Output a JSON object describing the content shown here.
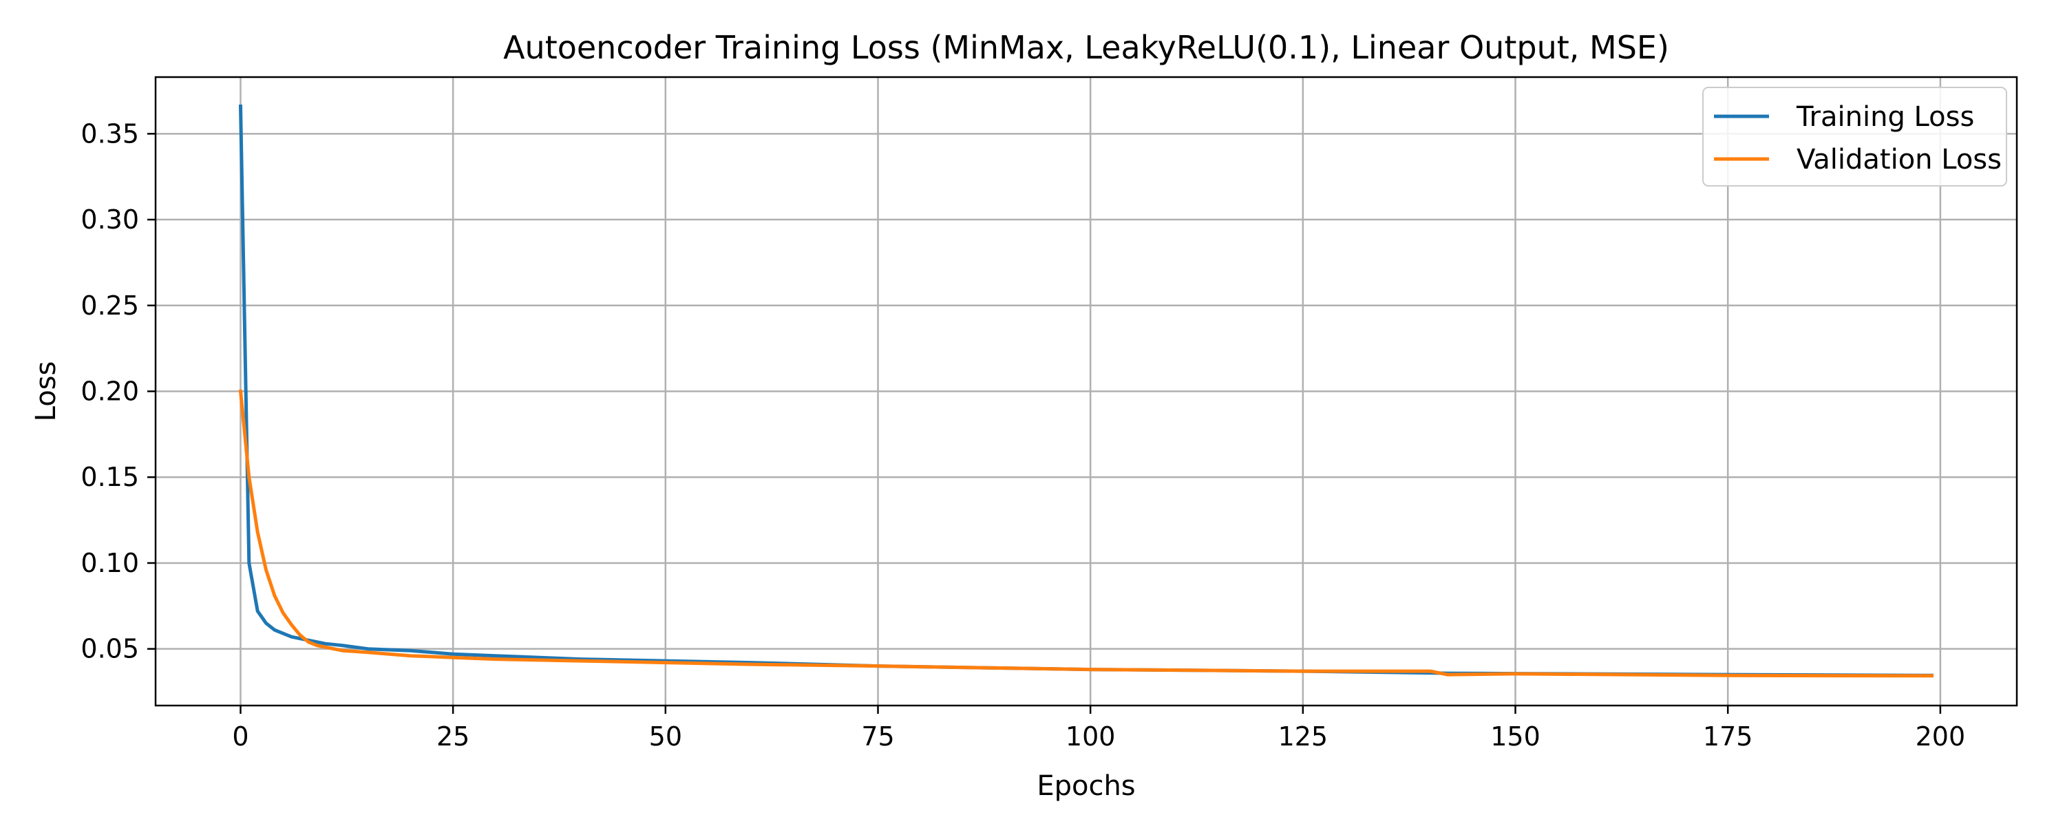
{
  "chart_data": {
    "type": "line",
    "title": "Autoencoder Training Loss (MinMax, LeakyReLU(0.1), Linear Output, MSE)",
    "xlabel": "Epochs",
    "ylabel": "Loss",
    "xlim": [
      -10,
      209
    ],
    "ylim": [
      0.017,
      0.383
    ],
    "xticks": [
      0,
      25,
      50,
      75,
      100,
      125,
      150,
      175,
      200
    ],
    "yticks": [
      0.05,
      0.1,
      0.15,
      0.2,
      0.25,
      0.3,
      0.35
    ],
    "xtick_labels": [
      "0",
      "25",
      "50",
      "75",
      "100",
      "125",
      "150",
      "175",
      "200"
    ],
    "ytick_labels": [
      "0.05",
      "0.10",
      "0.15",
      "0.20",
      "0.25",
      "0.30",
      "0.35"
    ],
    "grid": true,
    "legend": "top-right",
    "x": [
      0,
      1,
      2,
      3,
      4,
      5,
      6,
      7,
      8,
      9,
      10,
      12,
      15,
      20,
      25,
      30,
      40,
      50,
      60,
      75,
      100,
      125,
      140,
      142,
      150,
      175,
      199
    ],
    "series": [
      {
        "name": "Training Loss",
        "color": "#1f77b4",
        "values": [
          0.366,
          0.1,
          0.072,
          0.065,
          0.061,
          0.059,
          0.057,
          0.056,
          0.055,
          0.054,
          0.053,
          0.052,
          0.05,
          0.049,
          0.047,
          0.046,
          0.044,
          0.043,
          0.042,
          0.04,
          0.038,
          0.037,
          0.036,
          0.0358,
          0.0356,
          0.035,
          0.0345
        ]
      },
      {
        "name": "Validation Loss",
        "color": "#ff7f0e",
        "values": [
          0.2,
          0.15,
          0.118,
          0.096,
          0.081,
          0.071,
          0.064,
          0.058,
          0.054,
          0.052,
          0.051,
          0.049,
          0.048,
          0.046,
          0.045,
          0.044,
          0.043,
          0.042,
          0.041,
          0.04,
          0.038,
          0.037,
          0.037,
          0.035,
          0.0355,
          0.0345,
          0.0343
        ]
      }
    ]
  }
}
